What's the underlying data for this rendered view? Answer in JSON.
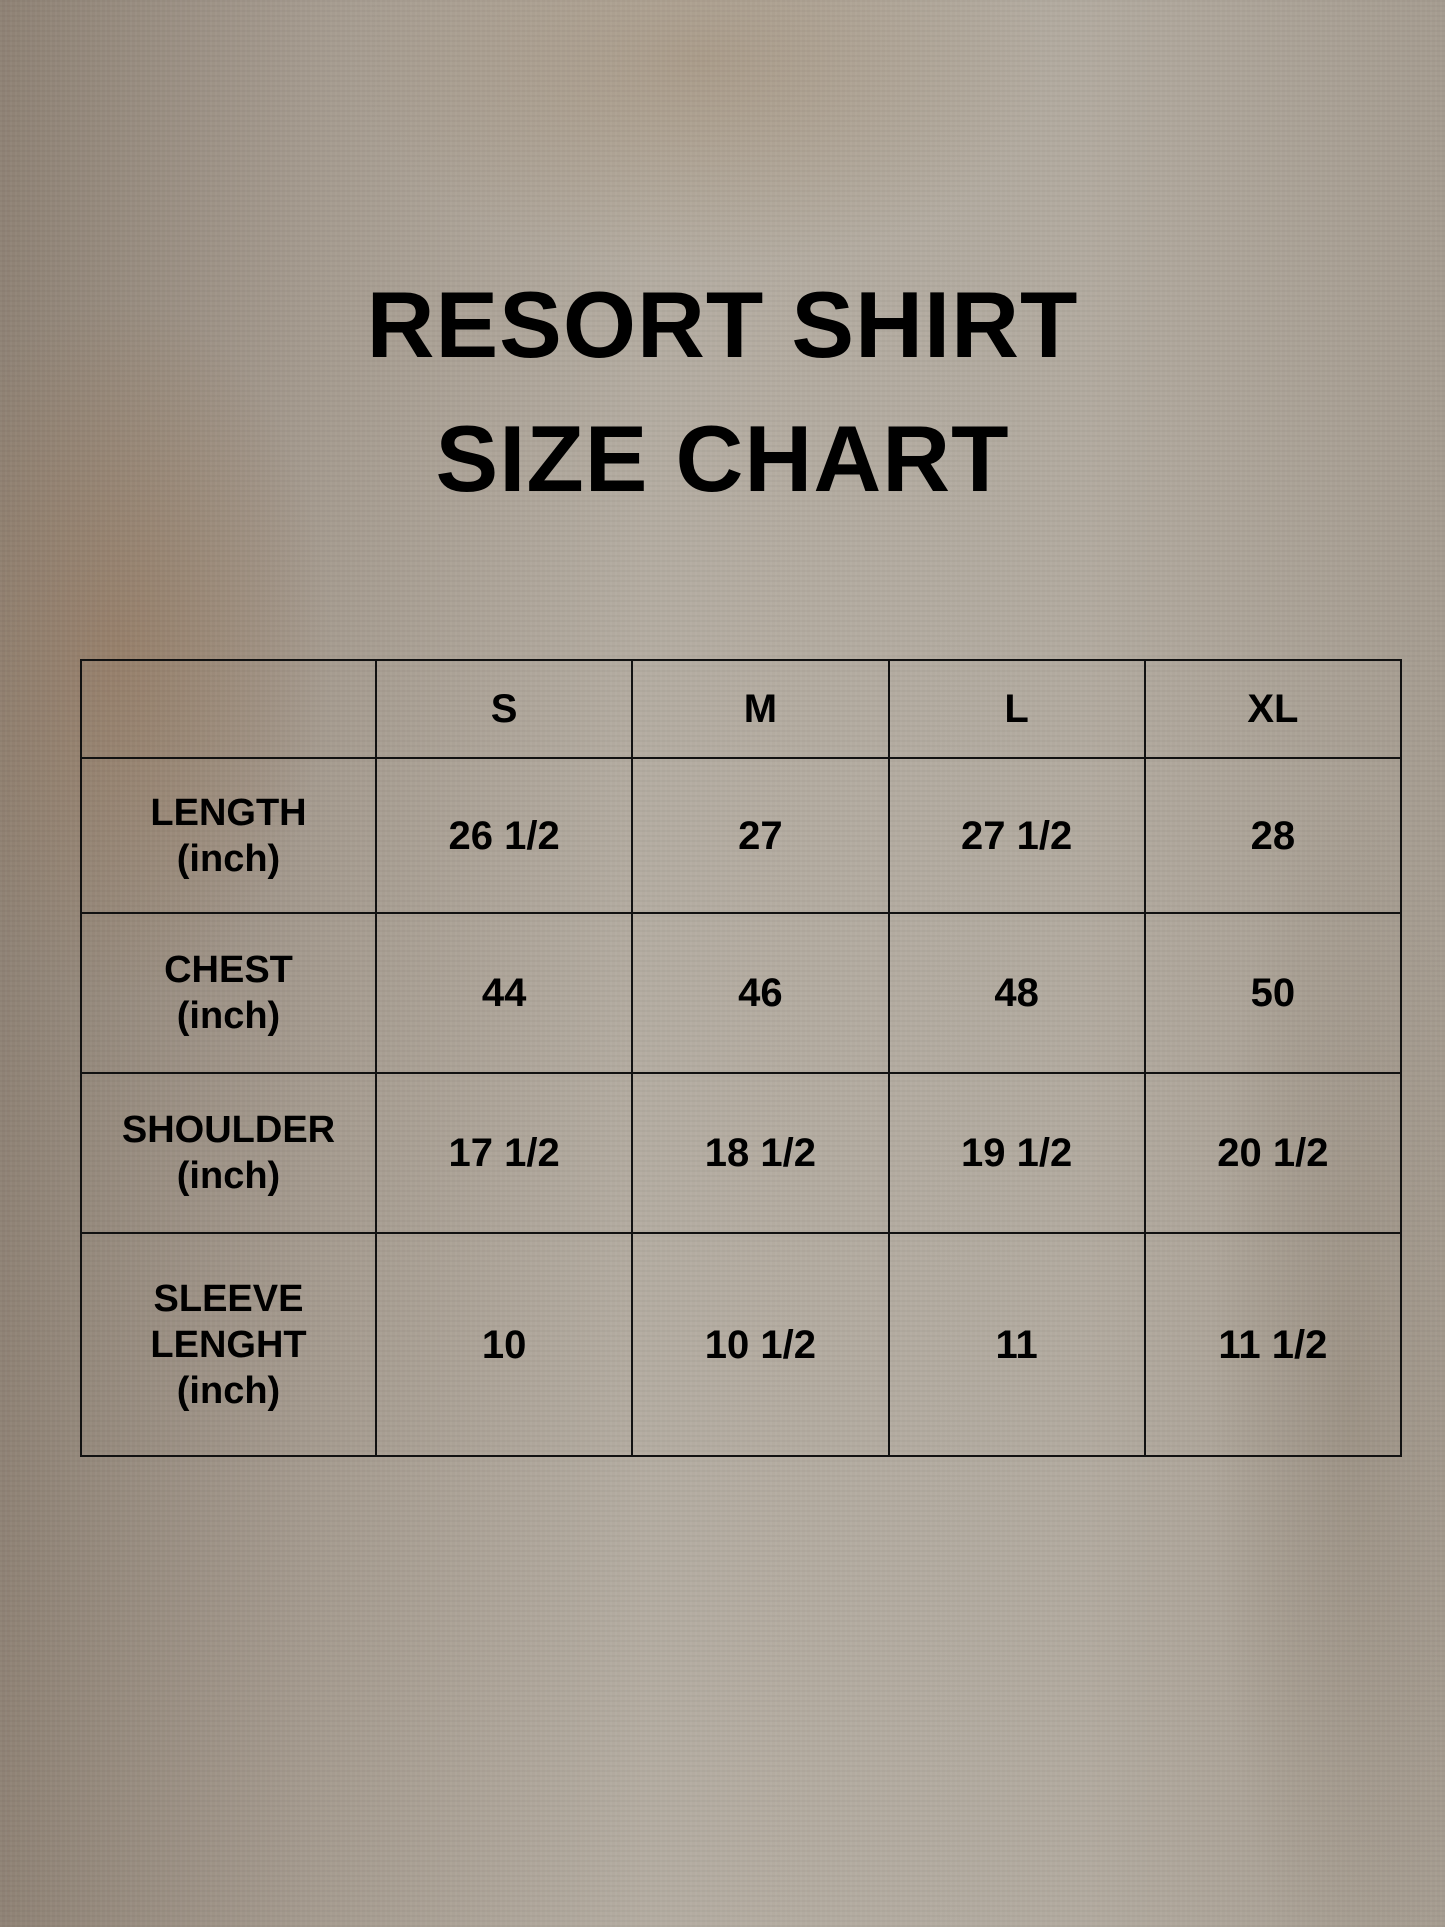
{
  "title": {
    "line1": "RESORT SHIRT",
    "line2": "SIZE CHART"
  },
  "table": {
    "header": [
      "",
      "S",
      "M",
      "L",
      "XL"
    ],
    "rows": [
      {
        "label": [
          "LENGTH",
          "(inch)"
        ],
        "values": [
          "26 1/2",
          "27",
          "27 1/2",
          "28"
        ]
      },
      {
        "label": [
          "CHEST",
          "(inch)"
        ],
        "values": [
          "44",
          "46",
          "48",
          "50"
        ]
      },
      {
        "label": [
          "SHOULDER",
          "(inch)"
        ],
        "values": [
          "17 1/2",
          "18 1/2",
          "19 1/2",
          "20 1/2"
        ]
      },
      {
        "label": [
          "SLEEVE",
          "LENGHT",
          "(inch)"
        ],
        "values": [
          "10",
          "10 1/2",
          "11",
          "11 1/2"
        ]
      }
    ]
  }
}
